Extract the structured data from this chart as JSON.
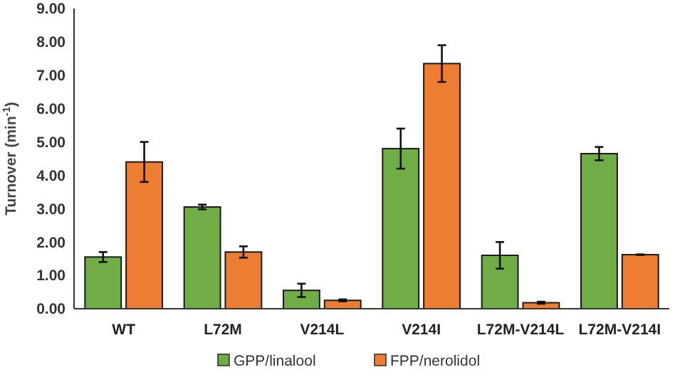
{
  "chart_data": {
    "type": "bar",
    "ylabel": "Turnover (min$^{-1}$)",
    "categories": [
      "WT",
      "L72M",
      "V214L",
      "V214I",
      "L72M-V214L",
      "L72M-V214I"
    ],
    "series": [
      {
        "name": "GPP/linalool",
        "color": "#70ad47",
        "values": [
          1.55,
          3.05,
          0.55,
          4.8,
          1.6,
          4.65
        ],
        "errors": [
          0.15,
          0.07,
          0.2,
          0.6,
          0.4,
          0.2
        ]
      },
      {
        "name": "FPP/nerolidol",
        "color": "#ed7d31",
        "values": [
          4.4,
          1.7,
          0.25,
          7.35,
          0.18,
          1.62
        ],
        "errors": [
          0.6,
          0.17,
          0.03,
          0.55,
          0.03,
          0.01
        ]
      }
    ],
    "ylim": [
      0,
      9
    ],
    "yticks": [
      {
        "value": 0,
        "label": "0.00"
      },
      {
        "value": 1,
        "label": "1.00"
      },
      {
        "value": 2,
        "label": "2.00"
      },
      {
        "value": 3,
        "label": "3.00"
      },
      {
        "value": 4,
        "label": "4.00"
      },
      {
        "value": 5,
        "label": "5.00"
      },
      {
        "value": 6,
        "label": "6.00"
      },
      {
        "value": 7,
        "label": "7.00"
      },
      {
        "value": 8,
        "label": "8.00"
      },
      {
        "value": 9,
        "label": "9.00"
      }
    ],
    "grid": false,
    "legend": "bottom"
  }
}
